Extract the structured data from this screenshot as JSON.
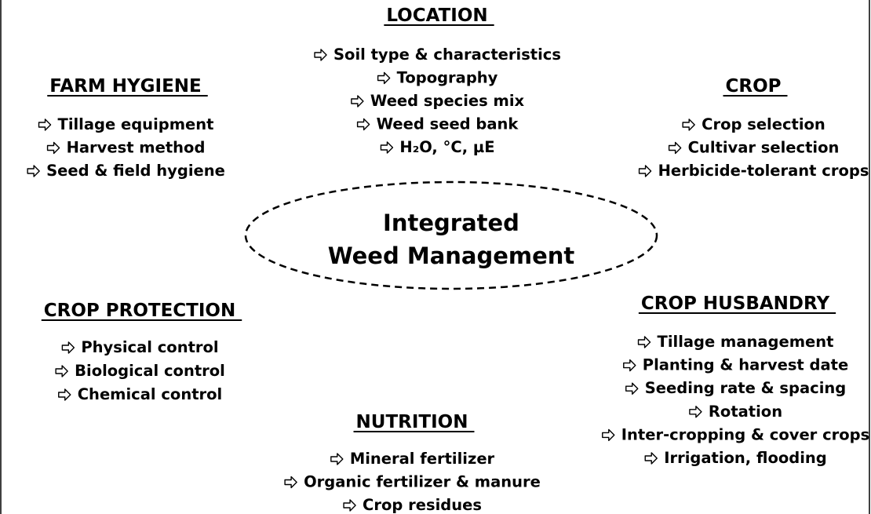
{
  "center": [
    "Integrated",
    "Weed Management"
  ],
  "groups": [
    {
      "title": "LOCATION",
      "items": [
        "Soil type & characteristics",
        "Topography",
        "Weed species mix",
        "Weed seed bank",
        "H₂O, °C,  µE"
      ]
    },
    {
      "title": "FARM HYGIENE",
      "items": [
        "Tillage equipment",
        "Harvest method",
        "Seed & field hygiene"
      ]
    },
    {
      "title": "CROP",
      "items": [
        "Crop selection",
        "Cultivar selection",
        "Herbicide-tolerant crops"
      ]
    },
    {
      "title": "CROP PROTECTION",
      "items": [
        "Physical control",
        "Biological control",
        "Chemical control"
      ]
    },
    {
      "title": "CROP HUSBANDRY",
      "items": [
        "Tillage management",
        "Planting & harvest date",
        "Seeding rate & spacing",
        "Rotation",
        "Inter-cropping & cover crops",
        "Irrigation, flooding"
      ]
    },
    {
      "title": "NUTRITION",
      "items": [
        "Mineral fertilizer",
        "Organic fertilizer & manure",
        "Crop residues"
      ]
    }
  ]
}
